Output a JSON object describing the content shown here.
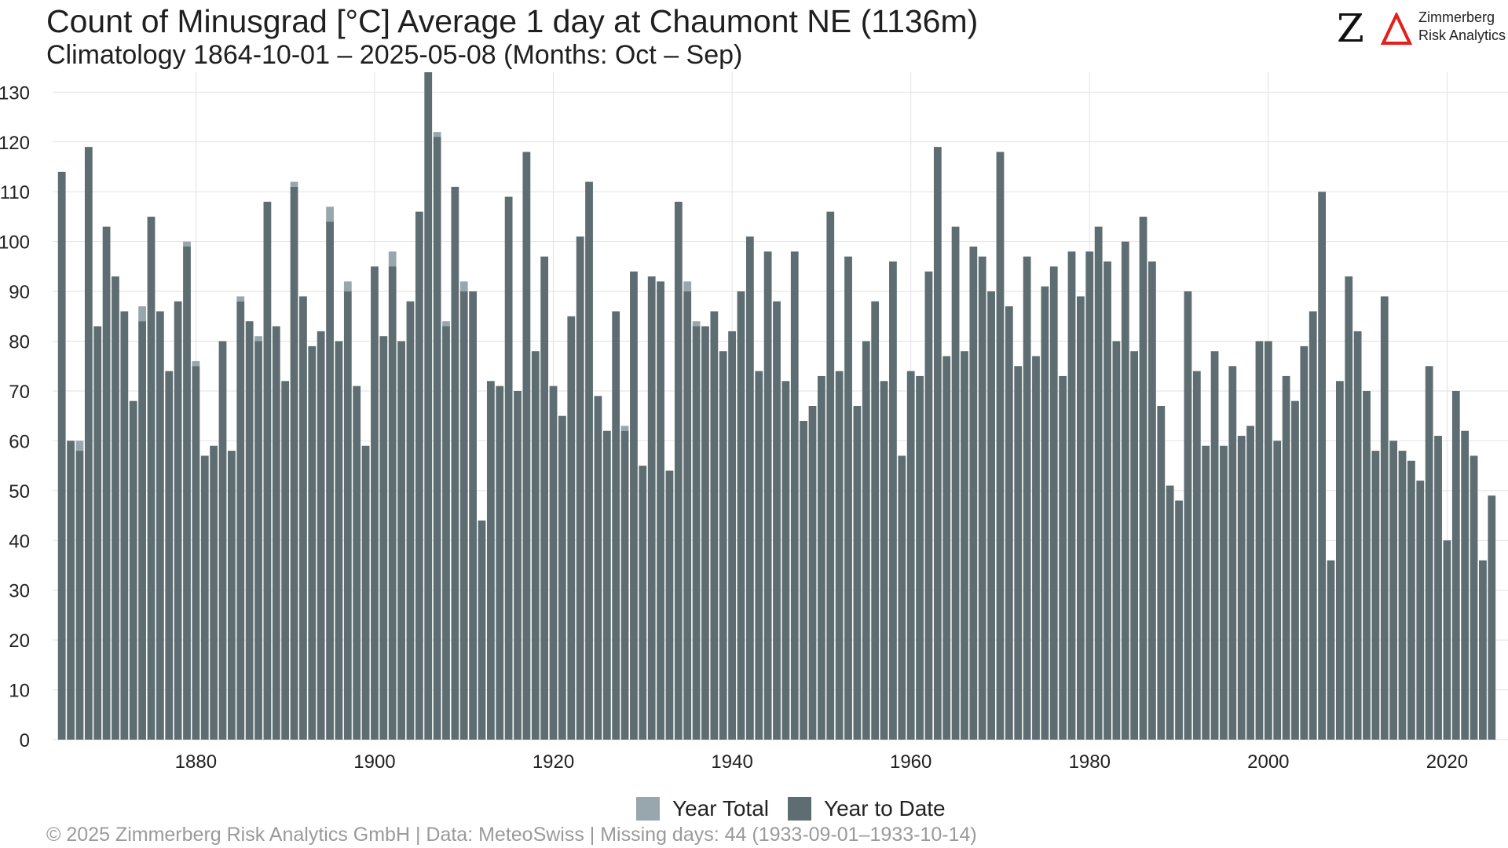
{
  "title": "Count of Minusgrad [°C] Average 1 day at Chaumont  NE (1136m)",
  "subtitle": "Climatology 1864-10-01 – 2025-05-08 (Months: Oct – Sep)",
  "logo": {
    "mark": "Z",
    "name_line1": "Zimmerberg",
    "name_line2": "Risk Analytics",
    "accent_color": "#e3201b"
  },
  "footer": "©  2025 Zimmerberg Risk Analytics GmbH | Data: MeteoSwiss | Missing days: 44 (1933-09-01–1933-10-14)",
  "colors": {
    "year_total": "#97a7ad",
    "year_to_date": "#5d6d72",
    "grid": "#e2e2e2"
  },
  "chart_data": {
    "type": "bar",
    "x_label": "",
    "y_label": "",
    "ylim": [
      0,
      134
    ],
    "yticks": [
      0,
      10,
      20,
      30,
      40,
      50,
      60,
      70,
      80,
      90,
      100,
      110,
      120,
      130
    ],
    "xticks": [
      1880,
      1900,
      1920,
      1940,
      1960,
      1980,
      2000,
      2020
    ],
    "xlim": [
      1864,
      2025
    ],
    "grid": true,
    "legend_position": "bottom",
    "series": [
      {
        "name": "Year Total",
        "color": "#97a7ad"
      },
      {
        "name": "Year to Date",
        "color": "#5d6d72"
      }
    ],
    "years": [
      1865,
      1866,
      1867,
      1868,
      1869,
      1870,
      1871,
      1872,
      1873,
      1874,
      1875,
      1876,
      1877,
      1878,
      1879,
      1880,
      1881,
      1882,
      1883,
      1884,
      1885,
      1886,
      1887,
      1888,
      1889,
      1890,
      1891,
      1892,
      1893,
      1894,
      1895,
      1896,
      1897,
      1898,
      1899,
      1900,
      1901,
      1902,
      1903,
      1904,
      1905,
      1906,
      1907,
      1908,
      1909,
      1910,
      1911,
      1912,
      1913,
      1914,
      1915,
      1916,
      1917,
      1918,
      1919,
      1920,
      1921,
      1922,
      1923,
      1924,
      1925,
      1926,
      1927,
      1928,
      1929,
      1930,
      1931,
      1932,
      1933,
      1934,
      1935,
      1936,
      1937,
      1938,
      1939,
      1940,
      1941,
      1942,
      1943,
      1944,
      1945,
      1946,
      1947,
      1948,
      1949,
      1950,
      1951,
      1952,
      1953,
      1954,
      1955,
      1956,
      1957,
      1958,
      1959,
      1960,
      1961,
      1962,
      1963,
      1964,
      1965,
      1966,
      1967,
      1968,
      1969,
      1970,
      1971,
      1972,
      1973,
      1974,
      1975,
      1976,
      1977,
      1978,
      1979,
      1980,
      1981,
      1982,
      1983,
      1984,
      1985,
      1986,
      1987,
      1988,
      1989,
      1990,
      1991,
      1992,
      1993,
      1994,
      1995,
      1996,
      1997,
      1998,
      1999,
      2000,
      2001,
      2002,
      2003,
      2004,
      2005,
      2006,
      2007,
      2008,
      2009,
      2010,
      2011,
      2012,
      2013,
      2014,
      2015,
      2016,
      2017,
      2018,
      2019,
      2020,
      2021,
      2022,
      2023,
      2024,
      2025
    ],
    "year_total": [
      114,
      60,
      60,
      119,
      83,
      103,
      93,
      86,
      68,
      87,
      105,
      86,
      74,
      88,
      100,
      76,
      57,
      59,
      80,
      58,
      89,
      84,
      81,
      108,
      83,
      72,
      112,
      89,
      79,
      82,
      107,
      80,
      92,
      71,
      59,
      95,
      81,
      98,
      80,
      88,
      106,
      134,
      122,
      84,
      111,
      92,
      90,
      44,
      72,
      71,
      109,
      70,
      118,
      78,
      97,
      71,
      65,
      85,
      101,
      112,
      69,
      62,
      86,
      63,
      94,
      55,
      93,
      92,
      54,
      108,
      92,
      84,
      83,
      86,
      78,
      82,
      90,
      101,
      74,
      98,
      88,
      72,
      98,
      64,
      67,
      73,
      106,
      74,
      97,
      67,
      80,
      88,
      72,
      96,
      57,
      74,
      73,
      94,
      119,
      77,
      103,
      78,
      99,
      97,
      90,
      118,
      87,
      75,
      97,
      77,
      91,
      95,
      73,
      98,
      89,
      98,
      103,
      96,
      80,
      100,
      78,
      105,
      96,
      67,
      51,
      48,
      90,
      74,
      59,
      78,
      59,
      75,
      61,
      63,
      80,
      80,
      60,
      73,
      68,
      79,
      86,
      110,
      36,
      72,
      93,
      82,
      70,
      58,
      89,
      60,
      58,
      56,
      52,
      75,
      61,
      40,
      70,
      62,
      57,
      36,
      49
    ],
    "year_to_date": [
      114,
      60,
      58,
      119,
      83,
      103,
      93,
      86,
      68,
      84,
      105,
      86,
      74,
      88,
      99,
      75,
      57,
      59,
      80,
      58,
      88,
      84,
      80,
      108,
      83,
      72,
      111,
      89,
      79,
      82,
      104,
      80,
      90,
      71,
      59,
      95,
      81,
      95,
      80,
      88,
      106,
      134,
      121,
      83,
      111,
      90,
      90,
      44,
      72,
      71,
      109,
      70,
      118,
      78,
      97,
      71,
      65,
      85,
      101,
      112,
      69,
      62,
      86,
      62,
      94,
      55,
      93,
      92,
      54,
      108,
      90,
      83,
      83,
      86,
      78,
      82,
      90,
      101,
      74,
      98,
      88,
      72,
      98,
      64,
      67,
      73,
      106,
      74,
      97,
      67,
      80,
      88,
      72,
      96,
      57,
      74,
      73,
      94,
      119,
      77,
      103,
      78,
      99,
      97,
      90,
      118,
      87,
      75,
      97,
      77,
      91,
      95,
      73,
      98,
      89,
      98,
      103,
      96,
      80,
      100,
      78,
      105,
      96,
      67,
      51,
      48,
      90,
      74,
      59,
      78,
      59,
      75,
      61,
      63,
      80,
      80,
      60,
      73,
      68,
      79,
      86,
      110,
      36,
      72,
      93,
      82,
      70,
      58,
      89,
      60,
      58,
      56,
      52,
      75,
      61,
      40,
      70,
      62,
      57,
      36,
      49
    ]
  }
}
